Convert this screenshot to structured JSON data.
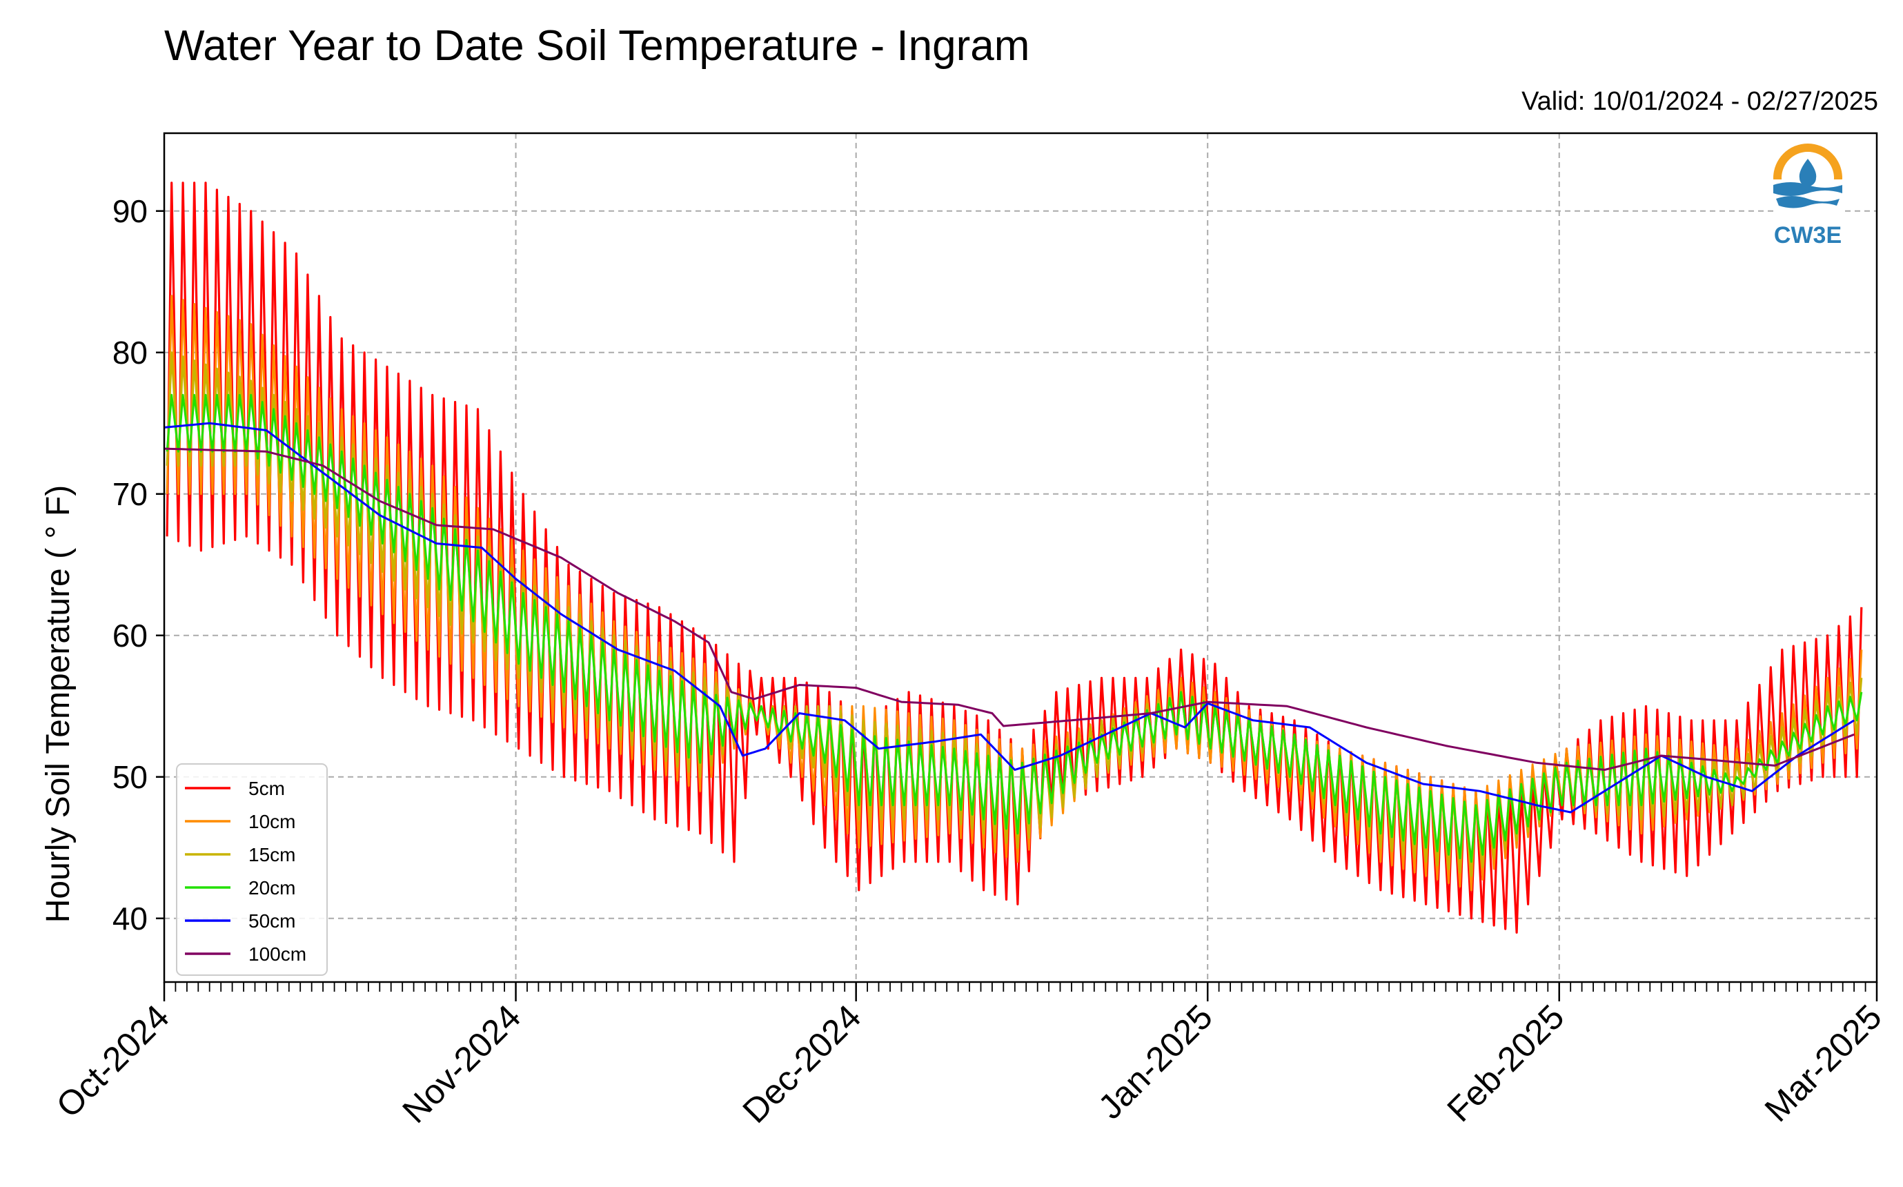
{
  "chart_data": {
    "type": "line",
    "title": "Water Year to Date Soil Temperature - Ingram",
    "subtitle": "Valid: 10/01/2024 - 02/27/2025",
    "xlabel": "",
    "ylabel": "Hourly Soil Temperature ( ° F)",
    "x_range": [
      "2024-10-01",
      "2025-03-01"
    ],
    "ylim": [
      35.5,
      95.5
    ],
    "y_ticks": [
      40,
      50,
      60,
      70,
      80,
      90
    ],
    "x_ticks": [
      {
        "date": "2024-10-01",
        "label": "Oct-2024"
      },
      {
        "date": "2024-11-01",
        "label": "Nov-2024"
      },
      {
        "date": "2024-12-01",
        "label": "Dec-2024"
      },
      {
        "date": "2025-01-01",
        "label": "Jan-2025"
      },
      {
        "date": "2025-02-01",
        "label": "Feb-2025"
      },
      {
        "date": "2025-03-01",
        "label": "Mar-2025"
      }
    ],
    "grid": true,
    "legend_position": "lower-left",
    "series": [
      {
        "name": "5cm",
        "color": "#ff0000",
        "resolution": "daily min/max",
        "x": [
          "2024-10-01",
          "2024-10-04",
          "2024-10-08",
          "2024-10-12",
          "2024-10-16",
          "2024-10-20",
          "2024-10-24",
          "2024-10-28",
          "2024-11-01",
          "2024-11-05",
          "2024-11-09",
          "2024-11-13",
          "2024-11-17",
          "2024-11-20",
          "2024-11-22",
          "2024-11-25",
          "2024-11-28",
          "2024-12-01",
          "2024-12-05",
          "2024-12-09",
          "2024-12-12",
          "2024-12-15",
          "2024-12-18",
          "2024-12-22",
          "2024-12-26",
          "2024-12-29",
          "2025-01-01",
          "2025-01-04",
          "2025-01-08",
          "2025-01-12",
          "2025-01-16",
          "2025-01-20",
          "2025-01-24",
          "2025-01-28",
          "2025-02-01",
          "2025-02-04",
          "2025-02-08",
          "2025-02-12",
          "2025-02-16",
          "2025-02-20",
          "2025-02-24",
          "2025-02-27"
        ],
        "max": [
          92,
          92,
          90,
          87,
          81,
          79,
          77,
          76,
          70,
          65,
          63,
          62,
          60,
          58,
          57,
          57,
          56,
          54,
          56,
          55,
          54,
          52,
          56,
          57,
          57,
          59,
          58,
          55,
          54,
          52,
          51,
          50,
          49,
          49,
          52,
          54,
          55,
          54,
          54,
          59,
          60,
          62
        ],
        "min": [
          67,
          66,
          67,
          65,
          60,
          57,
          55,
          54,
          52,
          50,
          49,
          47,
          46,
          44,
          53,
          50,
          45,
          42,
          44,
          44,
          42,
          41,
          48,
          49,
          50,
          52,
          51,
          49,
          47,
          44,
          42,
          41,
          40,
          39,
          47,
          46,
          44,
          43,
          46,
          49,
          50,
          50
        ]
      },
      {
        "name": "10cm",
        "color": "#ff8c00",
        "resolution": "daily min/max",
        "x": [
          "2024-10-01",
          "2024-10-08",
          "2024-10-16",
          "2024-10-24",
          "2024-11-01",
          "2024-11-09",
          "2024-11-17",
          "2024-11-22",
          "2024-11-28",
          "2024-12-01",
          "2024-12-09",
          "2024-12-15",
          "2024-12-22",
          "2024-12-29",
          "2025-01-01",
          "2025-01-08",
          "2025-01-16",
          "2025-01-24",
          "2025-02-01",
          "2025-02-08",
          "2025-02-16",
          "2025-02-24",
          "2025-02-27"
        ],
        "max": [
          84,
          82,
          76,
          72,
          66,
          61,
          58,
          55,
          55,
          55,
          54,
          52,
          54,
          57,
          56,
          53,
          51,
          49,
          52,
          53,
          52,
          57,
          59
        ],
        "min": [
          70,
          70,
          64,
          59,
          55,
          52,
          49,
          54,
          48,
          45,
          46,
          44,
          50,
          52,
          51,
          49,
          44,
          42,
          48,
          46,
          48,
          51,
          52
        ]
      },
      {
        "name": "15cm",
        "color": "#c8b400",
        "resolution": "daily min/max",
        "x": [
          "2024-10-01",
          "2024-10-08",
          "2024-10-16",
          "2024-10-24",
          "2024-11-01",
          "2024-11-09",
          "2024-11-17",
          "2024-11-22",
          "2024-11-28",
          "2024-12-01",
          "2024-12-09",
          "2024-12-15",
          "2024-12-22",
          "2024-12-29",
          "2025-01-01",
          "2025-01-08",
          "2025-01-16",
          "2025-01-24",
          "2025-02-01",
          "2025-02-08",
          "2025-02-16",
          "2025-02-24",
          "2025-02-27"
        ],
        "max": [
          80,
          78,
          74,
          70,
          64,
          60,
          57,
          55,
          55,
          54,
          53,
          51,
          54,
          56,
          55,
          53,
          50,
          48,
          51,
          52,
          51,
          56,
          57
        ],
        "min": [
          72,
          72,
          67,
          62,
          57,
          53,
          50,
          54,
          50,
          47,
          47,
          45,
          50,
          53,
          52,
          50,
          45,
          43,
          48,
          47,
          48,
          52,
          53
        ]
      },
      {
        "name": "20cm",
        "color": "#22e000",
        "resolution": "daily min/max",
        "x": [
          "2024-10-01",
          "2024-10-08",
          "2024-10-16",
          "2024-10-24",
          "2024-11-01",
          "2024-11-09",
          "2024-11-17",
          "2024-11-22",
          "2024-11-28",
          "2024-12-01",
          "2024-12-09",
          "2024-12-15",
          "2024-12-22",
          "2024-12-29",
          "2025-01-01",
          "2025-01-08",
          "2025-01-16",
          "2025-01-24",
          "2025-02-01",
          "2025-02-08",
          "2025-02-16",
          "2025-02-24",
          "2025-02-27"
        ],
        "max": [
          77,
          77,
          73,
          69,
          63,
          59,
          56,
          55,
          54,
          53,
          52,
          51,
          53,
          56,
          55,
          53,
          50,
          48,
          51,
          52,
          50,
          55,
          56
        ],
        "min": [
          73,
          73,
          69,
          64,
          58,
          54,
          51,
          54,
          51,
          48,
          48,
          46,
          51,
          53,
          52,
          50,
          46,
          44,
          48,
          48,
          49,
          53,
          54
        ]
      },
      {
        "name": "50cm",
        "color": "#0000ff",
        "resolution": "daily",
        "x": [
          "2024-10-01",
          "2024-10-05",
          "2024-10-10",
          "2024-10-15",
          "2024-10-20",
          "2024-10-25",
          "2024-10-29",
          "2024-11-01",
          "2024-11-05",
          "2024-11-10",
          "2024-11-15",
          "2024-11-19",
          "2024-11-21",
          "2024-11-23",
          "2024-11-26",
          "2024-11-30",
          "2024-12-03",
          "2024-12-08",
          "2024-12-12",
          "2024-12-15",
          "2024-12-19",
          "2024-12-23",
          "2024-12-27",
          "2024-12-30",
          "2025-01-01",
          "2025-01-05",
          "2025-01-10",
          "2025-01-15",
          "2025-01-20",
          "2025-01-25",
          "2025-01-30",
          "2025-02-02",
          "2025-02-05",
          "2025-02-10",
          "2025-02-14",
          "2025-02-18",
          "2025-02-22",
          "2025-02-27"
        ],
        "values": [
          74.7,
          75.0,
          74.5,
          71.5,
          68.5,
          66.5,
          66.2,
          64.0,
          61.5,
          59.0,
          57.5,
          55.0,
          51.5,
          52.0,
          54.5,
          54.0,
          52.0,
          52.5,
          53.0,
          50.5,
          51.5,
          53.0,
          54.5,
          53.5,
          55.2,
          54.0,
          53.5,
          51.0,
          49.5,
          49.0,
          48.0,
          47.5,
          49.0,
          51.5,
          50.0,
          49.0,
          51.5,
          54.0
        ]
      },
      {
        "name": "100cm",
        "color": "#800060",
        "resolution": "daily",
        "x": [
          "2024-10-01",
          "2024-10-10",
          "2024-10-15",
          "2024-10-20",
          "2024-10-25",
          "2024-10-30",
          "2024-11-05",
          "2024-11-10",
          "2024-11-15",
          "2024-11-18",
          "2024-11-20",
          "2024-11-22",
          "2024-11-26",
          "2024-12-01",
          "2024-12-05",
          "2024-12-10",
          "2024-12-13",
          "2024-12-14",
          "2024-12-20",
          "2024-12-27",
          "2025-01-01",
          "2025-01-08",
          "2025-01-15",
          "2025-01-22",
          "2025-01-30",
          "2025-02-05",
          "2025-02-10",
          "2025-02-13",
          "2025-02-20",
          "2025-02-27"
        ],
        "values": [
          73.2,
          73.0,
          72.0,
          69.5,
          67.8,
          67.5,
          65.5,
          63.0,
          61.0,
          59.5,
          56.0,
          55.5,
          56.5,
          56.3,
          55.3,
          55.1,
          54.5,
          53.6,
          54.0,
          54.5,
          55.3,
          55.0,
          53.5,
          52.2,
          51.0,
          50.5,
          51.5,
          51.3,
          50.8,
          53.0
        ]
      }
    ]
  },
  "logo": {
    "text": "CW3E",
    "colors": {
      "ring": "#f5a21e",
      "waves": "#2a7fb8"
    }
  },
  "icons": {
    "logo": "cw3e-droplet-logo-icon"
  }
}
